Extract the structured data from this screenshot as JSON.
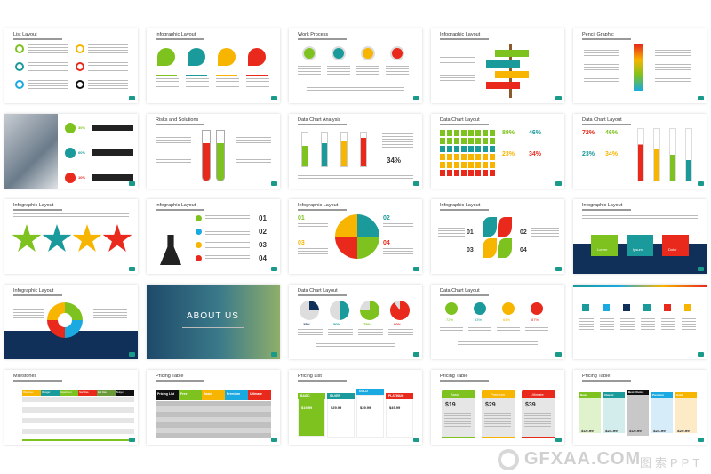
{
  "colors": {
    "green": "#7dc21e",
    "teal": "#1a9a9a",
    "yellow": "#f7b500",
    "red": "#e8291c",
    "blue": "#1ba9e1",
    "black": "#111111",
    "navy": "#10305a"
  },
  "slides": [
    {
      "title": "List Layout",
      "kind": "list6"
    },
    {
      "title": "Infographic Layout",
      "kind": "badges4"
    },
    {
      "title": "Work Process",
      "kind": "process"
    },
    {
      "title": "Infographic Layout",
      "kind": "signpost"
    },
    {
      "title": "Pencil Graphic",
      "kind": "pencil"
    },
    {
      "title": "",
      "kind": "photo-stats",
      "labels": [
        "30%",
        "60%",
        "10%"
      ]
    },
    {
      "title": "Risks and Solutions",
      "kind": "tubes"
    },
    {
      "title": "Data Chart Analysis",
      "kind": "cylinders",
      "labels": [
        "34%"
      ]
    },
    {
      "title": "Data Chart Layout",
      "kind": "people",
      "labels": [
        "89%",
        "46%",
        "23%",
        "34%"
      ]
    },
    {
      "title": "Data Chart Layout",
      "kind": "thermo",
      "labels": [
        "72%",
        "46%",
        "23%",
        "34%"
      ]
    },
    {
      "title": "Infographic Layout",
      "kind": "stars"
    },
    {
      "title": "Infographic Layout",
      "kind": "flask",
      "labels": [
        "01",
        "02",
        "03",
        "04"
      ]
    },
    {
      "title": "Infographic Layout",
      "kind": "circle4",
      "labels": [
        "01",
        "02",
        "03",
        "04"
      ]
    },
    {
      "title": "Infographic Layout",
      "kind": "petals",
      "labels": [
        "01",
        "02",
        "03",
        "04"
      ]
    },
    {
      "title": "Infographic Layout",
      "kind": "boxes3",
      "labels": [
        "Lorem",
        "Ipsum",
        "Dolor"
      ]
    },
    {
      "title": "Infographic Layout",
      "kind": "swirl"
    },
    {
      "title": "ABOUT US",
      "kind": "about"
    },
    {
      "title": "Data Chart Layout",
      "kind": "pies",
      "labels": [
        "25%",
        "50%",
        "75%",
        "90%"
      ]
    },
    {
      "title": "Data Chart Layout",
      "kind": "icons4",
      "labels": [
        "72%",
        "53%",
        "64%",
        "87%"
      ]
    },
    {
      "title": "",
      "kind": "icons6"
    },
    {
      "title": "Milestones",
      "kind": "milestones",
      "labels": [
        "Milestones",
        "Manager",
        "Department",
        "Start Date",
        "End Date",
        "Budget"
      ]
    },
    {
      "title": "Pricing Table",
      "kind": "ptable",
      "labels": [
        "Pricing List",
        "Free",
        "Basic",
        "Premium",
        "Ultimate"
      ]
    },
    {
      "title": "Pricing List",
      "kind": "plist",
      "labels": [
        "BASIC",
        "SILVER",
        "GOLD",
        "PLATINUM",
        "$19.99",
        "$29.99",
        "$39.99",
        "$49.99"
      ]
    },
    {
      "title": "Pricing Table",
      "kind": "pcards",
      "labels": [
        "Basic",
        "Premium",
        "Ultimate",
        "$19",
        "$29",
        "$39"
      ]
    },
    {
      "title": "Pricing Table",
      "kind": "pcols",
      "labels": [
        "Basic",
        "Classic",
        "Best Choice",
        "Premium",
        "Gold",
        "$19.99",
        "$24.99",
        "$19.99",
        "$24.99",
        "$29.99"
      ]
    }
  ],
  "watermark": {
    "main": "GFXAA.COM",
    "sub": "图索PPT"
  }
}
